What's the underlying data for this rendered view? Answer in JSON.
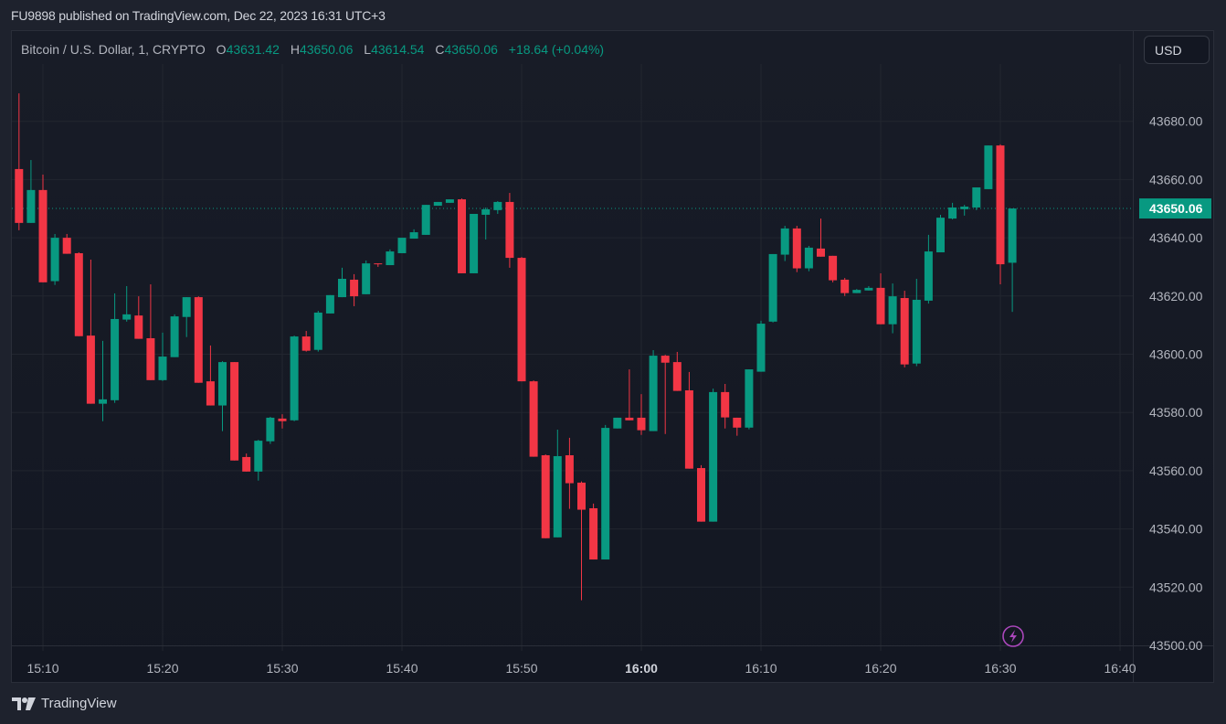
{
  "published": "FU9898 published on TradingView.com, Dec 22, 2023 16:31 UTC+3",
  "legend": {
    "symbol": "Bitcoin / U.S. Dollar, 1, CRYPTO",
    "o_label": "O",
    "o": "43631.42",
    "h_label": "H",
    "h": "43650.06",
    "l_label": "L",
    "l": "43614.54",
    "c_label": "C",
    "c": "43650.06",
    "change": "+18.64 (+0.04%)"
  },
  "currency_button": "USD",
  "brand": "TradingView",
  "colors": {
    "up": "#089981",
    "down": "#f23645",
    "last_price": "#089981",
    "icon": "#ab47bc"
  },
  "icons": {
    "alert": "lightning-icon",
    "logo": "tradingview-logo-icon"
  },
  "chart_data": {
    "type": "candlestick",
    "interval": "1",
    "ylim": [
      43500,
      43690
    ],
    "y_ticks": [
      "43500.00",
      "43520.00",
      "43540.00",
      "43560.00",
      "43580.00",
      "43600.00",
      "43620.00",
      "43640.00",
      "43660.00",
      "43680.00"
    ],
    "x_ticks": [
      "15:10",
      "15:20",
      "15:30",
      "15:40",
      "15:50",
      "16:00",
      "16:10",
      "16:20",
      "16:30",
      "16:40"
    ],
    "x_tick_bold": "16:00",
    "last_price": "43650.06",
    "grid": true,
    "columns": [
      "time",
      "open",
      "high",
      "low",
      "close"
    ],
    "candles": [
      [
        "15:08",
        43663.6,
        43689.6,
        43642.6,
        43645.1
      ],
      [
        "15:09",
        43645.1,
        43666.7,
        43645.1,
        43656.4
      ],
      [
        "15:10",
        43656.4,
        43661.7,
        43624.7,
        43624.7
      ],
      [
        "15:11",
        43625.1,
        43641.3,
        43623.8,
        43640.0
      ],
      [
        "15:12",
        43640.0,
        43641.3,
        43634.5,
        43634.5
      ],
      [
        "15:13",
        43634.7,
        43635.0,
        43606.2,
        43606.2
      ],
      [
        "15:14",
        43606.4,
        43632.5,
        43583.0,
        43583.0
      ],
      [
        "15:15",
        43583.0,
        43604.6,
        43577.0,
        43584.5
      ],
      [
        "15:16",
        43584.2,
        43620.9,
        43583.3,
        43612.1
      ],
      [
        "15:17",
        43611.9,
        43623.4,
        43611.2,
        43613.7
      ],
      [
        "15:18",
        43613.3,
        43619.9,
        43605.3,
        43605.3
      ],
      [
        "15:19",
        43605.5,
        43624.0,
        43591.1,
        43591.1
      ],
      [
        "15:20",
        43591.1,
        43607.4,
        43590.8,
        43599.2
      ],
      [
        "15:21",
        43599.0,
        43613.7,
        43599.0,
        43613.0
      ],
      [
        "15:22",
        43612.8,
        43619.6,
        43605.9,
        43619.6
      ],
      [
        "15:23",
        43619.6,
        43619.9,
        43590.2,
        43590.2
      ],
      [
        "15:24",
        43590.7,
        43603.0,
        43582.4,
        43582.4
      ],
      [
        "15:25",
        43582.4,
        43597.6,
        43573.6,
        43597.3
      ],
      [
        "15:26",
        43597.3,
        43597.3,
        43563.5,
        43563.5
      ],
      [
        "15:27",
        43564.7,
        43565.9,
        43559.7,
        43559.7
      ],
      [
        "15:28",
        43559.7,
        43570.6,
        43556.6,
        43570.3
      ],
      [
        "15:29",
        43570.1,
        43578.5,
        43569.2,
        43578.2
      ],
      [
        "15:30",
        43577.9,
        43579.4,
        43574.5,
        43577.0
      ],
      [
        "15:31",
        43577.3,
        43606.4,
        43577.0,
        43606.1
      ],
      [
        "15:32",
        43606.1,
        43608.0,
        43600.9,
        43601.2
      ],
      [
        "15:33",
        43601.5,
        43614.9,
        43600.9,
        43614.3
      ],
      [
        "15:34",
        43614.0,
        43620.3,
        43614.0,
        43620.3
      ],
      [
        "15:35",
        43619.6,
        43629.7,
        43619.6,
        43625.9
      ],
      [
        "15:36",
        43625.6,
        43627.5,
        43616.5,
        43619.9
      ],
      [
        "15:37",
        43620.6,
        43632.2,
        43620.6,
        43631.2
      ],
      [
        "15:38",
        43631.2,
        43631.2,
        43630.0,
        43630.9
      ],
      [
        "15:39",
        43630.6,
        43636.0,
        43630.6,
        43635.3
      ],
      [
        "15:40",
        43634.7,
        43640.0,
        43634.7,
        43640.0
      ],
      [
        "15:41",
        43639.7,
        43642.9,
        43639.7,
        43641.9
      ],
      [
        "15:42",
        43641.0,
        43651.3,
        43641.0,
        43651.3
      ],
      [
        "15:43",
        43651.0,
        43652.3,
        43651.0,
        43652.3
      ],
      [
        "15:44",
        43652.0,
        43653.2,
        43652.0,
        43653.2
      ],
      [
        "15:45",
        43653.2,
        43653.5,
        43627.8,
        43627.8
      ],
      [
        "15:46",
        43627.8,
        43648.2,
        43627.8,
        43648.2
      ],
      [
        "15:47",
        43647.9,
        43650.4,
        43639.4,
        43649.8
      ],
      [
        "15:48",
        43649.5,
        43652.6,
        43648.2,
        43652.3
      ],
      [
        "15:49",
        43652.3,
        43655.4,
        43629.7,
        43633.1
      ],
      [
        "15:50",
        43633.1,
        43633.4,
        43590.7,
        43590.7
      ],
      [
        "15:51",
        43590.7,
        43591.0,
        43564.8,
        43564.8
      ],
      [
        "15:52",
        43565.3,
        43565.6,
        43536.8,
        43536.8
      ],
      [
        "15:53",
        43537.1,
        43574.1,
        43537.1,
        43565.0
      ],
      [
        "15:54",
        43565.3,
        43571.3,
        43546.9,
        43555.7
      ],
      [
        "15:55",
        43555.9,
        43556.3,
        43515.5,
        43546.6
      ],
      [
        "15:56",
        43547.1,
        43548.7,
        43529.5,
        43529.5
      ],
      [
        "15:57",
        43529.5,
        43575.7,
        43529.5,
        43574.7
      ],
      [
        "15:58",
        43574.5,
        43578.2,
        43574.5,
        43578.2
      ],
      [
        "15:59",
        43578.2,
        43594.8,
        43577.3,
        43577.3
      ],
      [
        "16:00",
        43578.2,
        43586.3,
        43572.3,
        43573.9
      ],
      [
        "16:01",
        43573.6,
        43601.4,
        43573.6,
        43599.5
      ],
      [
        "16:02",
        43599.5,
        43599.8,
        43572.6,
        43597.1
      ],
      [
        "16:03",
        43597.3,
        43600.8,
        43587.4,
        43587.4
      ],
      [
        "16:04",
        43587.6,
        43593.9,
        43560.7,
        43560.7
      ],
      [
        "16:05",
        43560.9,
        43561.9,
        43542.5,
        43542.5
      ],
      [
        "16:06",
        43542.5,
        43588.2,
        43542.5,
        43587.0
      ],
      [
        "16:07",
        43587.0,
        43589.8,
        43574.5,
        43578.3
      ],
      [
        "16:08",
        43578.2,
        43578.2,
        43572.0,
        43574.8
      ],
      [
        "16:09",
        43574.8,
        43594.8,
        43574.2,
        43594.8
      ],
      [
        "16:10",
        43594.0,
        43611.5,
        43594.0,
        43610.5
      ],
      [
        "16:11",
        43611.2,
        43634.4,
        43610.9,
        43634.4
      ],
      [
        "16:12",
        43634.2,
        43644.1,
        43632.0,
        43643.2
      ],
      [
        "16:13",
        43643.2,
        43644.1,
        43628.2,
        43629.5
      ],
      [
        "16:14",
        43629.5,
        43637.2,
        43628.5,
        43636.6
      ],
      [
        "16:15",
        43636.3,
        43646.6,
        43633.5,
        43633.5
      ],
      [
        "16:16",
        43633.8,
        43633.8,
        43624.7,
        43625.4
      ],
      [
        "16:17",
        43625.6,
        43626.2,
        43620.0,
        43621.0
      ],
      [
        "16:18",
        43621.0,
        43622.4,
        43621.0,
        43622.1
      ],
      [
        "16:19",
        43621.9,
        43623.4,
        43621.9,
        43622.8
      ],
      [
        "16:20",
        43622.8,
        43627.8,
        43610.3,
        43610.3
      ],
      [
        "16:21",
        43610.3,
        43624.3,
        43607.2,
        43619.9
      ],
      [
        "16:22",
        43619.3,
        43621.8,
        43595.5,
        43596.5
      ],
      [
        "16:23",
        43596.8,
        43625.9,
        43595.9,
        43618.7
      ],
      [
        "16:24",
        43618.4,
        43641.0,
        43617.4,
        43635.3
      ],
      [
        "16:25",
        43635.0,
        43647.9,
        43635.0,
        43646.9
      ],
      [
        "16:26",
        43646.6,
        43652.0,
        43646.3,
        43650.4
      ],
      [
        "16:27",
        43649.8,
        43651.3,
        43647.6,
        43650.7
      ],
      [
        "16:28",
        43650.4,
        43657.3,
        43649.5,
        43657.3
      ],
      [
        "16:29",
        43656.7,
        43671.7,
        43656.7,
        43671.7
      ],
      [
        "16:30",
        43671.7,
        43672.1,
        43624.0,
        43630.9
      ],
      [
        "16:31",
        43631.42,
        43650.06,
        43614.54,
        43650.06
      ]
    ]
  }
}
